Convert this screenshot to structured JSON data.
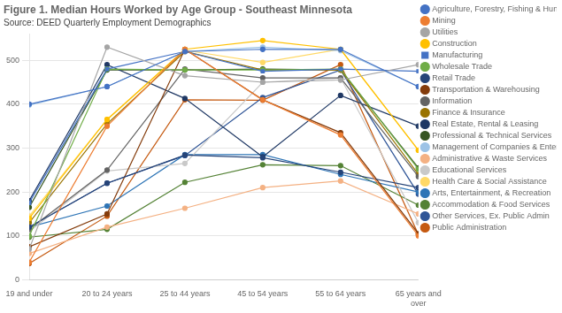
{
  "chart_data": {
    "type": "line",
    "title": "Figure 1. Median Hours Worked by Age Group - Southeast Minnesota",
    "subtitle": "Source: DEED Quarterly Employment Demographics",
    "categories": [
      "19 and under",
      "20 to 24 years",
      "25 to 44 years",
      "45 to 54 years",
      "55 to 64 years",
      "65 years and\nover"
    ],
    "ylim": [
      0,
      560
    ],
    "yticks": [
      0,
      100,
      200,
      300,
      400,
      500
    ],
    "grid": true,
    "legend": "right",
    "series": [
      {
        "name": "Agriculture, Forestry, Fishing & Hunting",
        "color": "#4472C4",
        "marker": "circle",
        "values": [
          400,
          440,
          520,
          525,
          525,
          440
        ]
      },
      {
        "name": "Mining",
        "color": "#ED7D31",
        "marker": "circle",
        "values": [
          40,
          350,
          525,
          410,
          330,
          100
        ]
      },
      {
        "name": "Utilities",
        "color": "#A5A5A5",
        "marker": "circle",
        "values": [
          70,
          530,
          465,
          450,
          455,
          490
        ]
      },
      {
        "name": "Construction",
        "color": "#FFC000",
        "marker": "circle",
        "values": [
          140,
          365,
          525,
          545,
          525,
          295
        ]
      },
      {
        "name": "Manufacturing",
        "color": "#4472C4",
        "marker": "square",
        "values": [
          175,
          480,
          520,
          475,
          480,
          475
        ]
      },
      {
        "name": "Wholesale Trade",
        "color": "#70AD47",
        "marker": "circle",
        "values": [
          100,
          480,
          478,
          478,
          480,
          252
        ]
      },
      {
        "name": "Retail Trade",
        "color": "#264478",
        "marker": "circle",
        "values": [
          120,
          220,
          284,
          278,
          245,
          210
        ]
      },
      {
        "name": "Transportation & Warehousing",
        "color": "#843C0C",
        "marker": "circle",
        "values": [
          75,
          150,
          525,
          410,
          335,
          105
        ]
      },
      {
        "name": "Information",
        "color": "#636363",
        "marker": "circle",
        "values": [
          115,
          250,
          480,
          460,
          460,
          235
        ]
      },
      {
        "name": "Finance & Insurance",
        "color": "#997300",
        "marker": "circle",
        "values": [
          130,
          355,
          520,
          478,
          478,
          240
        ]
      },
      {
        "name": "Real Estate, Rental & Leasing",
        "color": "#1F3864",
        "marker": "circle",
        "values": [
          180,
          490,
          413,
          280,
          420,
          350
        ]
      },
      {
        "name": "Professional & Technical Services",
        "color": "#375623",
        "marker": "circle",
        "values": [
          165,
          478,
          478,
          480,
          478,
          255
        ]
      },
      {
        "name": "Management of Companies & Enterprises",
        "color": "#9DC3E6",
        "marker": "circle",
        "values": [
          398,
          440,
          520,
          530,
          522,
          440
        ]
      },
      {
        "name": "Administrative & Waste Services",
        "color": "#F4B183",
        "marker": "circle",
        "values": [
          60,
          120,
          163,
          210,
          225,
          150
        ]
      },
      {
        "name": "Educational Services",
        "color": "#C9C9C9",
        "marker": "circle",
        "values": [
          110,
          248,
          265,
          450,
          460,
          130
        ]
      },
      {
        "name": "Health Care & Social Assistance",
        "color": "#FFD966",
        "marker": "circle",
        "values": [
          145,
          365,
          523,
          495,
          525,
          295
        ]
      },
      {
        "name": "Arts, Entertainment, & Recreation",
        "color": "#2E75B6",
        "marker": "circle",
        "values": [
          120,
          168,
          285,
          285,
          240,
          200
        ]
      },
      {
        "name": "Accommodation & Food Services",
        "color": "#548235",
        "marker": "circle",
        "values": [
          97,
          115,
          222,
          262,
          260,
          170
        ]
      },
      {
        "name": "Other Services, Ex. Public Admin",
        "color": "#2F5597",
        "marker": "circle",
        "values": [
          120,
          220,
          283,
          415,
          478,
          195
        ]
      },
      {
        "name": "Public Administration",
        "color": "#C55A11",
        "marker": "circle",
        "values": [
          37,
          145,
          410,
          409,
          490,
          103
        ]
      }
    ]
  }
}
